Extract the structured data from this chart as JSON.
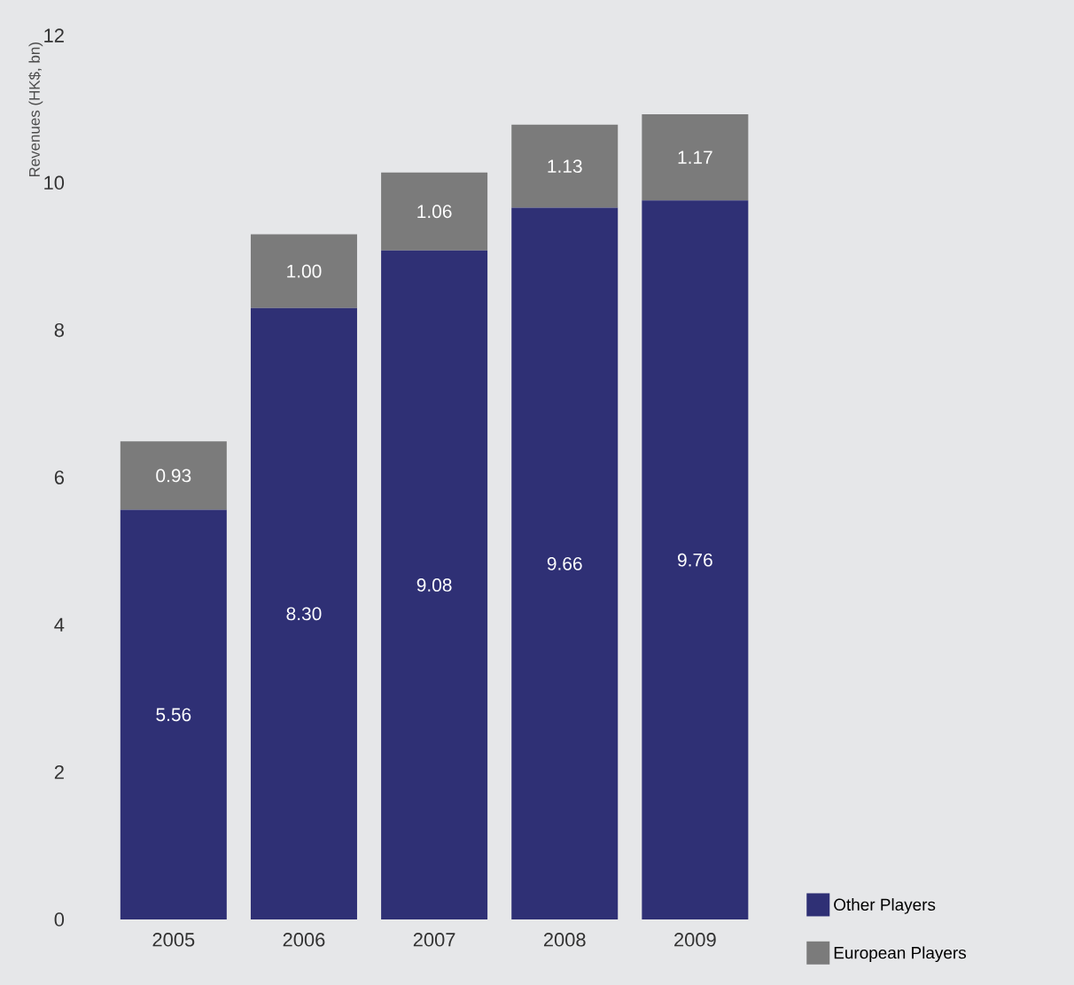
{
  "chart_data": {
    "type": "bar",
    "stacked": true,
    "ylabel": "Revenues (HK$, bn)",
    "categories": [
      "2005",
      "2006",
      "2007",
      "2008",
      "2009"
    ],
    "series": [
      {
        "name": "Other Players",
        "color": "#2f3075",
        "values": [
          5.56,
          8.3,
          9.08,
          9.66,
          9.76
        ],
        "value_labels": [
          "5.56",
          "8.30",
          "9.08",
          "9.66",
          "9.76"
        ]
      },
      {
        "name": "European Players",
        "color": "#7b7b7b",
        "values": [
          0.93,
          1.0,
          1.06,
          1.13,
          1.17
        ],
        "value_labels": [
          "0.93",
          "1.00",
          "1.06",
          "1.13",
          "1.17"
        ]
      }
    ],
    "ylim": [
      0,
      12
    ],
    "yticks": [
      0,
      2,
      4,
      6,
      8,
      10,
      12
    ],
    "legend": "bottom right"
  }
}
